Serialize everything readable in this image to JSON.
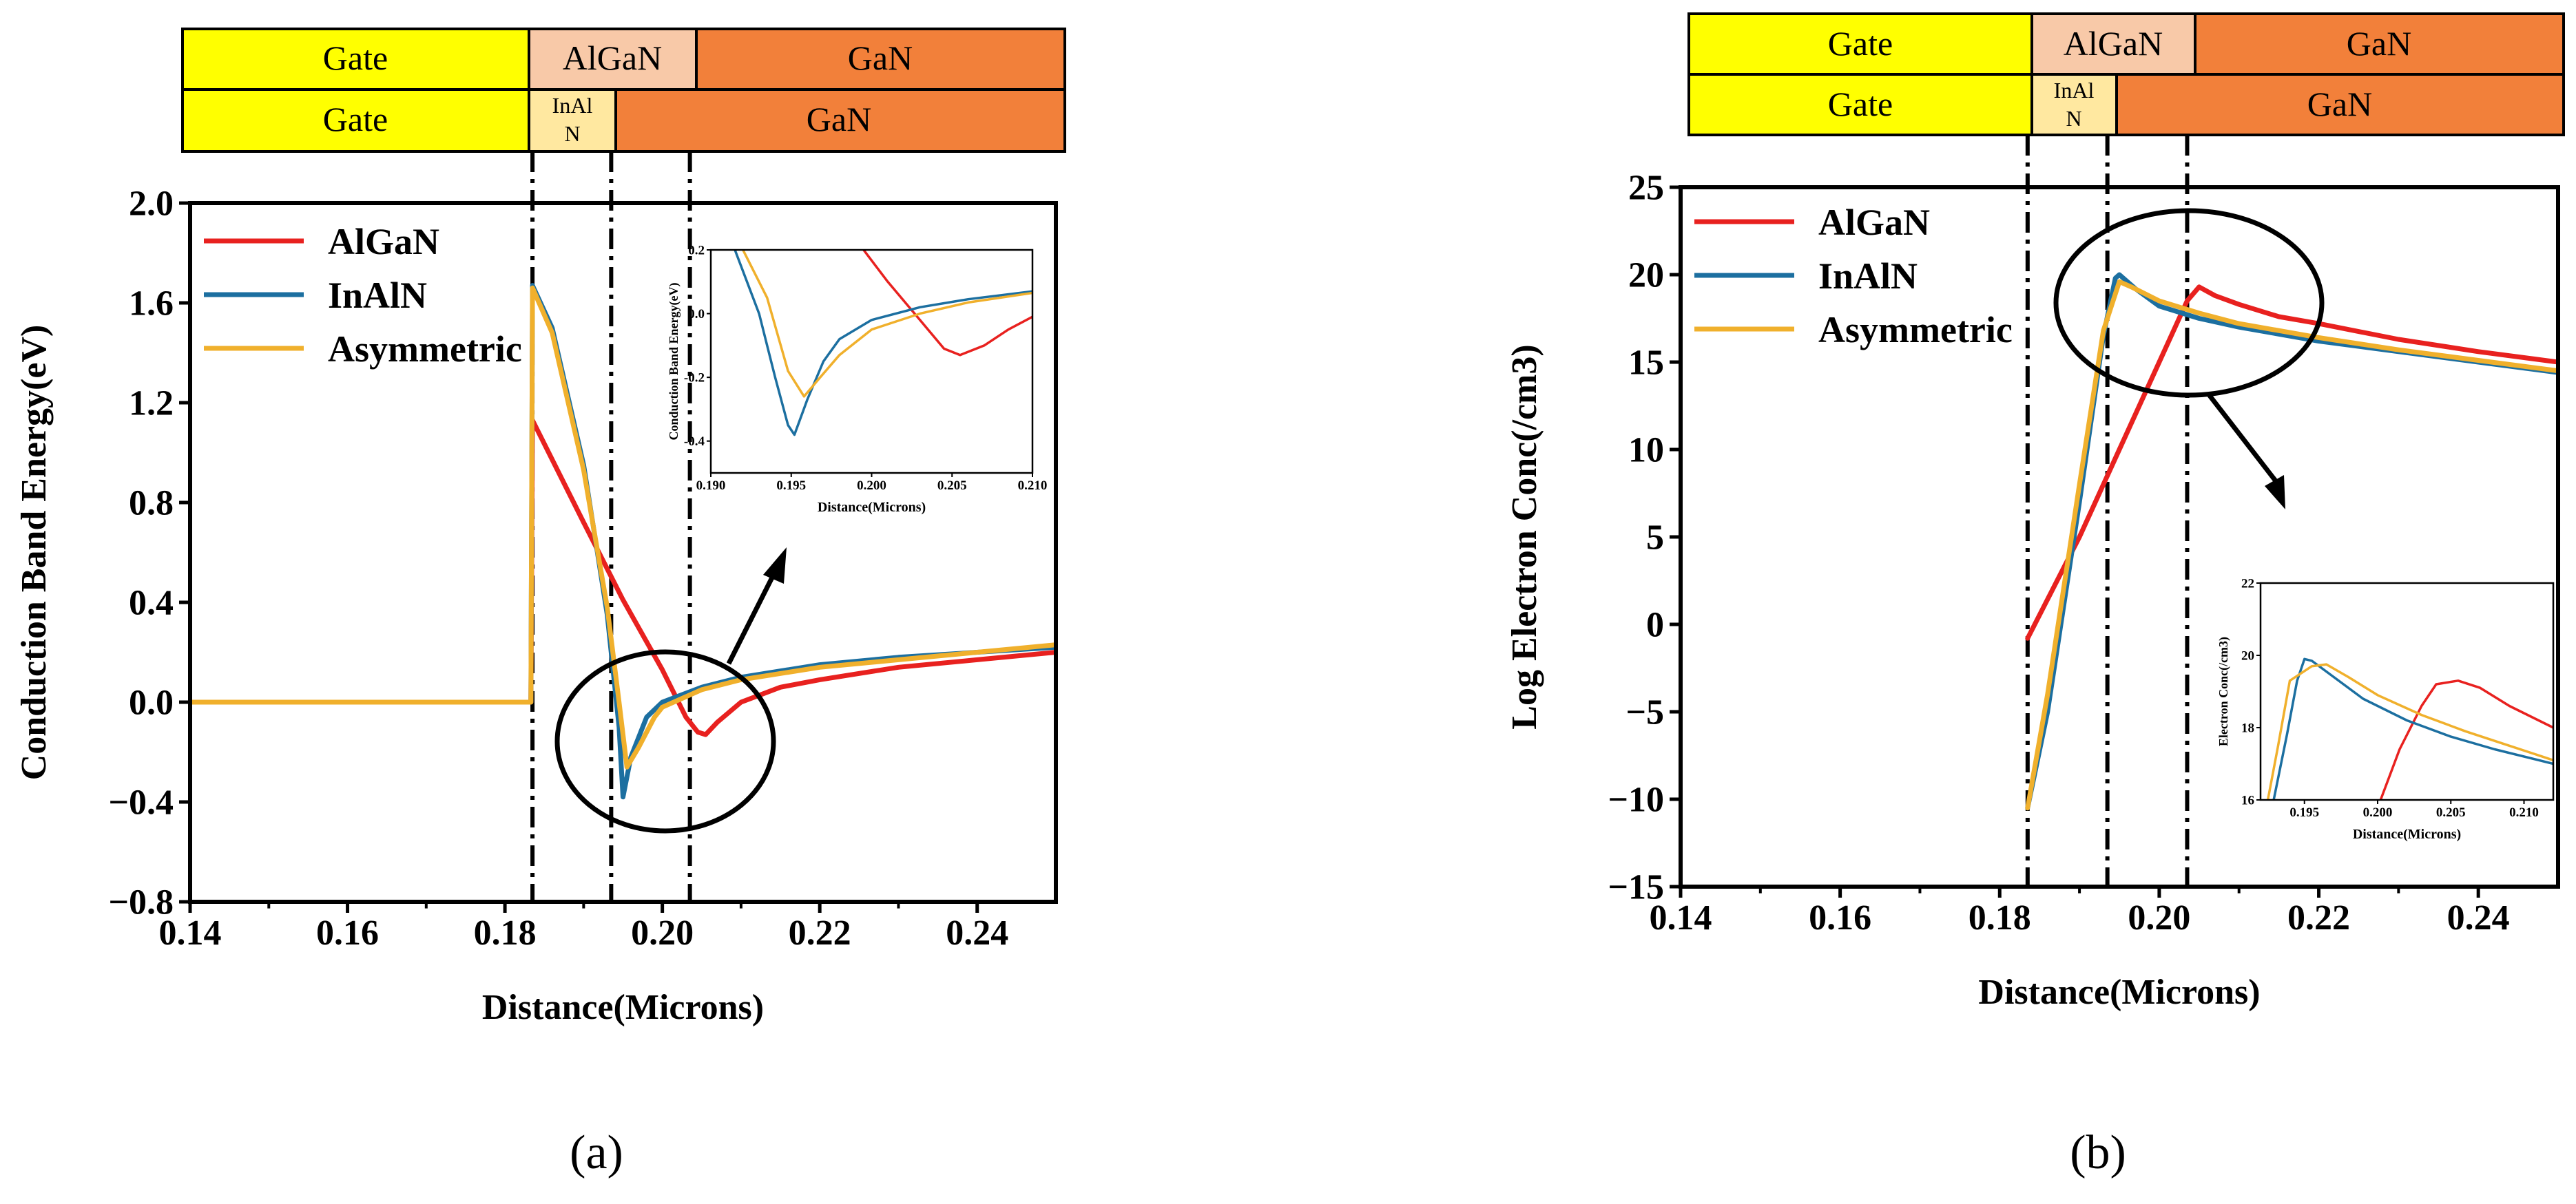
{
  "colors": {
    "algan_series": "#e8211f",
    "inaln_series": "#1c6fa0",
    "asym_series": "#f0b02c",
    "gate_layer": "#ffff00",
    "algan_layer": "#f8c9a8",
    "inaln_layer": "#ffe8a0",
    "gan_layer": "#f2803a"
  },
  "panels": [
    {
      "caption": "(a)",
      "layers": {
        "row1": [
          "Gate",
          "AlGaN",
          "GaN"
        ],
        "row2": [
          "Gate",
          "InAl N",
          "GaN"
        ]
      }
    },
    {
      "caption": "(b)",
      "layers": {
        "row1": [
          "Gate",
          "AlGaN",
          "GaN"
        ],
        "row2": [
          "Gate",
          "InAl N",
          "GaN"
        ]
      }
    }
  ],
  "chart_data": [
    {
      "id": "a-main",
      "type": "line",
      "xlabel": "Distance(Microns)",
      "ylabel": "Conduction Band Energy(eV)",
      "xlim": [
        0.14,
        0.25
      ],
      "ylim": [
        -0.8,
        2.0
      ],
      "xticks": [
        0.14,
        0.16,
        0.18,
        0.2,
        0.22,
        0.24
      ],
      "yticks": [
        -0.8,
        -0.4,
        0.0,
        0.4,
        0.8,
        1.2,
        1.6,
        2.0
      ],
      "xtick_labels": [
        "0.14",
        "0.16",
        "0.18",
        "0.20",
        "0.22",
        "0.24"
      ],
      "ytick_labels": [
        "−0.8",
        "−0.4",
        "0.0",
        "0.4",
        "0.8",
        "1.2",
        "1.6",
        "2.0"
      ],
      "legend": [
        "AlGaN",
        "InAlN",
        "Asymmetric"
      ],
      "vlines": [
        0.1835,
        0.1935,
        0.2035
      ],
      "series": [
        {
          "name": "AlGaN",
          "color": "#e8211f",
          "points": [
            [
              0.14,
              0
            ],
            [
              0.1833,
              0
            ],
            [
              0.1835,
              1.13
            ],
            [
              0.19,
              0.72
            ],
            [
              0.195,
              0.41
            ],
            [
              0.2,
              0.13
            ],
            [
              0.203,
              -0.06
            ],
            [
              0.2045,
              -0.12
            ],
            [
              0.2055,
              -0.13
            ],
            [
              0.207,
              -0.08
            ],
            [
              0.21,
              0.0
            ],
            [
              0.215,
              0.06
            ],
            [
              0.22,
              0.09
            ],
            [
              0.23,
              0.14
            ],
            [
              0.24,
              0.17
            ],
            [
              0.25,
              0.2
            ]
          ]
        },
        {
          "name": "InAlN",
          "color": "#1c6fa0",
          "points": [
            [
              0.14,
              0
            ],
            [
              0.1833,
              0
            ],
            [
              0.1835,
              1.67
            ],
            [
              0.186,
              1.5
            ],
            [
              0.19,
              0.95
            ],
            [
              0.193,
              0.35
            ],
            [
              0.1945,
              -0.1
            ],
            [
              0.195,
              -0.38
            ],
            [
              0.196,
              -0.22
            ],
            [
              0.198,
              -0.06
            ],
            [
              0.2,
              0.0
            ],
            [
              0.205,
              0.06
            ],
            [
              0.21,
              0.1
            ],
            [
              0.22,
              0.15
            ],
            [
              0.23,
              0.18
            ],
            [
              0.24,
              0.2
            ],
            [
              0.25,
              0.22
            ]
          ]
        },
        {
          "name": "Asymmetric",
          "color": "#f0b02c",
          "points": [
            [
              0.14,
              0
            ],
            [
              0.1833,
              0
            ],
            [
              0.1835,
              1.66
            ],
            [
              0.186,
              1.48
            ],
            [
              0.19,
              0.93
            ],
            [
              0.193,
              0.38
            ],
            [
              0.1945,
              0.0
            ],
            [
              0.1955,
              -0.26
            ],
            [
              0.197,
              -0.18
            ],
            [
              0.199,
              -0.06
            ],
            [
              0.2,
              -0.02
            ],
            [
              0.205,
              0.05
            ],
            [
              0.21,
              0.09
            ],
            [
              0.22,
              0.14
            ],
            [
              0.23,
              0.17
            ],
            [
              0.24,
              0.2
            ],
            [
              0.25,
              0.23
            ]
          ]
        }
      ]
    },
    {
      "id": "a-inset",
      "type": "line",
      "xlabel": "Distance(Microns)",
      "ylabel": "Conduction Band Energy(eV)",
      "xlim": [
        0.19,
        0.21
      ],
      "ylim": [
        -0.5,
        0.2
      ],
      "xticks": [
        0.19,
        0.195,
        0.2,
        0.205,
        0.21
      ],
      "yticks": [
        -0.4,
        -0.2,
        0.0,
        0.2
      ],
      "xtick_labels": [
        "0.190",
        "0.195",
        "0.200",
        "0.205",
        "0.210"
      ],
      "ytick_labels": [
        "-0.4",
        "-0.2",
        "0.0",
        "0.2"
      ],
      "series": [
        {
          "name": "AlGaN",
          "color": "#e8211f",
          "points": [
            [
              0.1995,
              0.2
            ],
            [
              0.201,
              0.1
            ],
            [
              0.203,
              -0.02
            ],
            [
              0.2045,
              -0.11
            ],
            [
              0.2055,
              -0.13
            ],
            [
              0.207,
              -0.1
            ],
            [
              0.2085,
              -0.05
            ],
            [
              0.21,
              -0.01
            ]
          ]
        },
        {
          "name": "InAlN",
          "color": "#1c6fa0",
          "points": [
            [
              0.1915,
              0.2
            ],
            [
              0.193,
              0.0
            ],
            [
              0.194,
              -0.2
            ],
            [
              0.1948,
              -0.35
            ],
            [
              0.1952,
              -0.38
            ],
            [
              0.196,
              -0.27
            ],
            [
              0.197,
              -0.15
            ],
            [
              0.198,
              -0.08
            ],
            [
              0.2,
              -0.02
            ],
            [
              0.203,
              0.02
            ],
            [
              0.206,
              0.045
            ],
            [
              0.21,
              0.07
            ]
          ]
        },
        {
          "name": "Asymmetric",
          "color": "#f0b02c",
          "points": [
            [
              0.192,
              0.2
            ],
            [
              0.1935,
              0.05
            ],
            [
              0.1948,
              -0.18
            ],
            [
              0.1958,
              -0.26
            ],
            [
              0.1968,
              -0.2
            ],
            [
              0.198,
              -0.13
            ],
            [
              0.2,
              -0.05
            ],
            [
              0.203,
              0.0
            ],
            [
              0.206,
              0.035
            ],
            [
              0.21,
              0.065
            ]
          ]
        }
      ]
    },
    {
      "id": "b-main",
      "type": "line",
      "xlabel": "Distance(Microns)",
      "ylabel": "Log Electron Conc(/cm3)",
      "xlim": [
        0.14,
        0.25
      ],
      "ylim": [
        -15,
        25
      ],
      "xticks": [
        0.14,
        0.16,
        0.18,
        0.2,
        0.22,
        0.24
      ],
      "yticks": [
        -15,
        -10,
        -5,
        0,
        5,
        10,
        15,
        20,
        25
      ],
      "xtick_labels": [
        "0.14",
        "0.16",
        "0.18",
        "0.20",
        "0.22",
        "0.24"
      ],
      "ytick_labels": [
        "−15",
        "−10",
        "−5",
        "0",
        "5",
        "10",
        "15",
        "20",
        "25"
      ],
      "legend": [
        "AlGaN",
        "InAlN",
        "Asymmetric"
      ],
      "vlines": [
        0.1835,
        0.1935,
        0.2035
      ],
      "series": [
        {
          "name": "AlGaN",
          "color": "#e8211f",
          "points": [
            [
              0.1835,
              -0.8
            ],
            [
              0.19,
              5.0
            ],
            [
              0.195,
              10.0
            ],
            [
              0.2,
              15.0
            ],
            [
              0.2035,
              18.5
            ],
            [
              0.205,
              19.3
            ],
            [
              0.207,
              18.8
            ],
            [
              0.21,
              18.3
            ],
            [
              0.215,
              17.6
            ],
            [
              0.22,
              17.2
            ],
            [
              0.23,
              16.3
            ],
            [
              0.24,
              15.6
            ],
            [
              0.25,
              15.0
            ]
          ]
        },
        {
          "name": "InAlN",
          "color": "#1c6fa0",
          "points": [
            [
              0.1835,
              -10.5
            ],
            [
              0.186,
              -5
            ],
            [
              0.19,
              7
            ],
            [
              0.193,
              16.5
            ],
            [
              0.1945,
              19.8
            ],
            [
              0.195,
              20.0
            ],
            [
              0.197,
              19.2
            ],
            [
              0.2,
              18.2
            ],
            [
              0.205,
              17.5
            ],
            [
              0.21,
              17.0
            ],
            [
              0.22,
              16.2
            ],
            [
              0.23,
              15.6
            ],
            [
              0.24,
              15.0
            ],
            [
              0.25,
              14.4
            ]
          ]
        },
        {
          "name": "Asymmetric",
          "color": "#f0b02c",
          "points": [
            [
              0.1835,
              -10.5
            ],
            [
              0.186,
              -4
            ],
            [
              0.19,
              8
            ],
            [
              0.193,
              16.8
            ],
            [
              0.195,
              19.6
            ],
            [
              0.1965,
              19.3
            ],
            [
              0.2,
              18.5
            ],
            [
              0.205,
              17.8
            ],
            [
              0.21,
              17.2
            ],
            [
              0.22,
              16.4
            ],
            [
              0.23,
              15.7
            ],
            [
              0.24,
              15.1
            ],
            [
              0.25,
              14.5
            ]
          ]
        }
      ]
    },
    {
      "id": "b-inset",
      "type": "line",
      "xlabel": "Distance(Microns)",
      "ylabel": "Electron Conc(/cm3)",
      "xlim": [
        0.192,
        0.212
      ],
      "ylim": [
        16,
        22
      ],
      "xticks": [
        0.195,
        0.2,
        0.205,
        0.21
      ],
      "yticks": [
        16,
        18,
        20,
        22
      ],
      "xtick_labels": [
        "0.195",
        "0.200",
        "0.205",
        "0.210"
      ],
      "ytick_labels": [
        "16",
        "18",
        "20",
        "22"
      ],
      "series": [
        {
          "name": "AlGaN",
          "color": "#e8211f",
          "points": [
            [
              0.2002,
              16.0
            ],
            [
              0.2015,
              17.4
            ],
            [
              0.203,
              18.6
            ],
            [
              0.204,
              19.2
            ],
            [
              0.2055,
              19.3
            ],
            [
              0.207,
              19.1
            ],
            [
              0.209,
              18.6
            ],
            [
              0.212,
              18.0
            ]
          ]
        },
        {
          "name": "InAlN",
          "color": "#1c6fa0",
          "points": [
            [
              0.1929,
              16.0
            ],
            [
              0.1938,
              17.8
            ],
            [
              0.1945,
              19.3
            ],
            [
              0.195,
              19.9
            ],
            [
              0.1955,
              19.85
            ],
            [
              0.197,
              19.4
            ],
            [
              0.199,
              18.8
            ],
            [
              0.202,
              18.2
            ],
            [
              0.205,
              17.75
            ],
            [
              0.208,
              17.4
            ],
            [
              0.212,
              17.0
            ]
          ]
        },
        {
          "name": "Asymmetric",
          "color": "#f0b02c",
          "points": [
            [
              0.1925,
              16.0
            ],
            [
              0.1932,
              17.5
            ],
            [
              0.194,
              19.3
            ],
            [
              0.1955,
              19.7
            ],
            [
              0.1965,
              19.75
            ],
            [
              0.198,
              19.4
            ],
            [
              0.2,
              18.9
            ],
            [
              0.203,
              18.35
            ],
            [
              0.206,
              17.9
            ],
            [
              0.209,
              17.5
            ],
            [
              0.212,
              17.1
            ]
          ]
        }
      ]
    }
  ]
}
